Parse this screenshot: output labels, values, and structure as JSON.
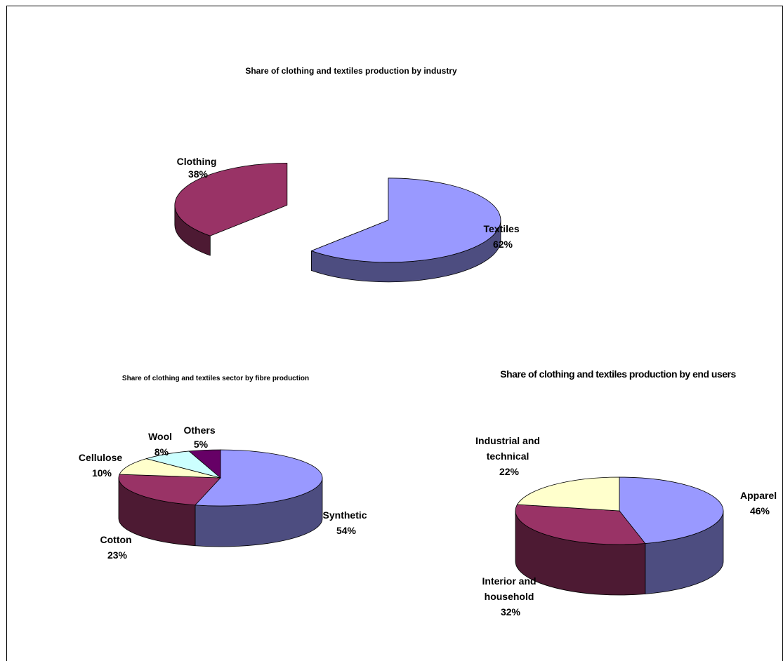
{
  "chart_data": [
    {
      "type": "pie",
      "title": "Share of clothing and textiles production by industry",
      "slices": [
        {
          "label": "Textiles",
          "value": 62,
          "value_label": "62%",
          "color": "#9999FF"
        },
        {
          "label": "Clothing",
          "value": 38,
          "value_label": "38%",
          "color": "#993366"
        }
      ]
    },
    {
      "type": "pie",
      "title": "Share of clothing and textiles sector by fibre production",
      "slices": [
        {
          "label": "Synthetic",
          "value": 54,
          "value_label": "54%",
          "color": "#9999FF"
        },
        {
          "label": "Cotton",
          "value": 23,
          "value_label": "23%",
          "color": "#993366"
        },
        {
          "label": "Cellulose",
          "value": 10,
          "value_label": "10%",
          "color": "#FFFFCC"
        },
        {
          "label": "Wool",
          "value": 8,
          "value_label": "8%",
          "color": "#CCFFFF"
        },
        {
          "label": "Others",
          "value": 5,
          "value_label": "5%",
          "color": "#660066"
        }
      ]
    },
    {
      "type": "pie",
      "title": "Share of clothing and textiles production by end users",
      "slices": [
        {
          "label": "Apparel",
          "value": 46,
          "value_label": "46%",
          "color": "#9999FF"
        },
        {
          "label": "Interior and household",
          "value": 32,
          "value_label": "32%",
          "color": "#993366"
        },
        {
          "label": "Industrial and technical",
          "value": 22,
          "value_label": "22%",
          "color": "#FFFFCC"
        }
      ]
    }
  ]
}
